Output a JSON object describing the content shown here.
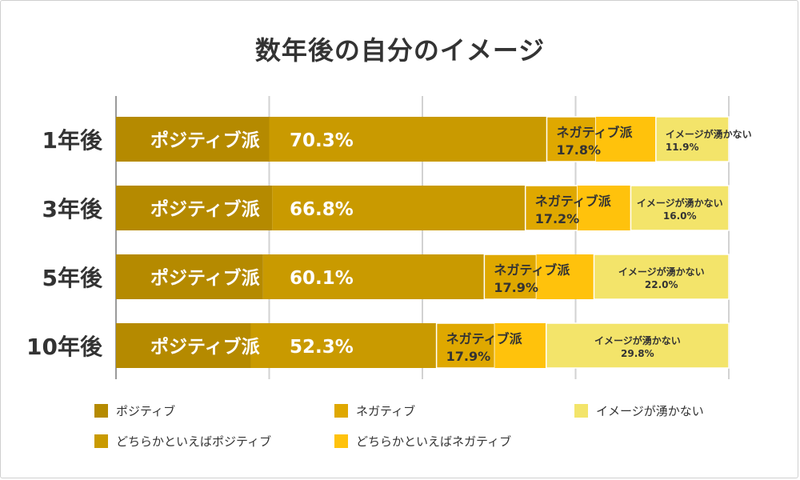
{
  "chart_data": {
    "type": "bar",
    "orientation": "horizontal",
    "stacked": true,
    "title": "数年後の自分のイメージ",
    "categories": [
      "1年後",
      "3年後",
      "5年後",
      "10年後"
    ],
    "xlim": [
      0,
      100
    ],
    "grid": true,
    "series": [
      {
        "name": "ポジティブ",
        "color": "#b58a00",
        "values": [
          25.0,
          25.5,
          24.0,
          22.0
        ]
      },
      {
        "name": "どちらかといえばポジティブ",
        "color": "#c99a00",
        "values": [
          45.3,
          41.3,
          36.1,
          30.3
        ]
      },
      {
        "name": "ネガティブ",
        "color": "#dfa800",
        "values": [
          8.0,
          8.5,
          8.5,
          9.5
        ]
      },
      {
        "name": "どちらかといえばネガティブ",
        "color": "#ffc20c",
        "values": [
          9.8,
          8.7,
          9.4,
          8.4
        ]
      },
      {
        "name": "イメージが湧かない",
        "color": "#f3e46a",
        "values": [
          11.9,
          16.0,
          22.0,
          29.8
        ]
      }
    ],
    "group_labels": {
      "positive": {
        "name": "ポジティブ派",
        "values": [
          "70.3%",
          "66.8%",
          "60.1%",
          "52.3%"
        ]
      },
      "negative": {
        "name": "ネガティブ派",
        "values": [
          "17.8%",
          "17.2%",
          "17.9%",
          "17.9%"
        ]
      },
      "unknown": {
        "name": "イメージが湧かない",
        "values": [
          "11.9%",
          "16.0%",
          "22.0%",
          "29.8%"
        ]
      }
    },
    "legend": [
      "ポジティブ",
      "ネガティブ",
      "イメージが湧かない",
      "どちらかといえばポジティブ",
      "どちらかといえばネガティブ"
    ]
  }
}
